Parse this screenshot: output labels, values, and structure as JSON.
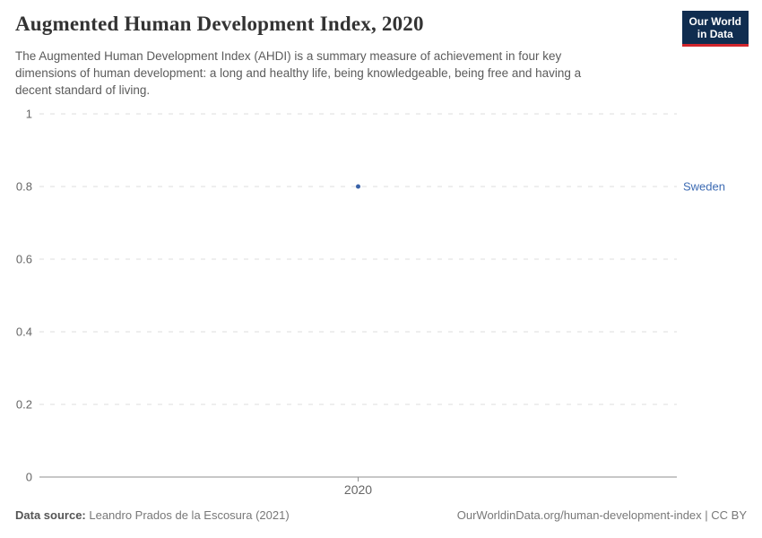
{
  "header": {
    "title": "Augmented Human Development Index, 2020",
    "subtitle_lines": [
      "The Augmented Human Development Index (AHDI) is a summary measure of achievement in four key",
      "dimensions of human development: a long and healthy life, being knowledgeable, being free and having a",
      "decent standard of living."
    ],
    "logo": {
      "line1": "Our World",
      "line2": "in Data",
      "bg_color": "#102d50",
      "accent_color": "#d1252c"
    }
  },
  "chart_data": {
    "type": "scatter",
    "title": "Augmented Human Development Index, 2020",
    "x": [
      2020
    ],
    "series": [
      {
        "name": "Sweden",
        "values": [
          0.8
        ],
        "color": "#3a63a8",
        "label_color": "#3d6bb3"
      }
    ],
    "xlabel": "",
    "ylabel": "",
    "ylim": [
      0,
      1
    ],
    "yticks": [
      {
        "value": 0,
        "label": "0"
      },
      {
        "value": 0.2,
        "label": "0.2"
      },
      {
        "value": 0.4,
        "label": "0.4"
      },
      {
        "value": 0.6,
        "label": "0.6"
      },
      {
        "value": 0.8,
        "label": "0.8"
      },
      {
        "value": 1,
        "label": "1"
      }
    ],
    "xticks": [
      {
        "value": 2020,
        "label": "2020"
      }
    ],
    "grid": "horizontal-dashed",
    "gridline_color": "#dcdcdc",
    "axis_color": "#8f8f8f",
    "tick_label_color": "#666666",
    "legend_position": "right-of-point"
  },
  "footer": {
    "datasource_label": "Data source:",
    "datasource_value": " Leandro Prados de la Escosura (2021)",
    "link": "OurWorldinData.org/human-development-index",
    "license_suffix": " | CC BY"
  }
}
